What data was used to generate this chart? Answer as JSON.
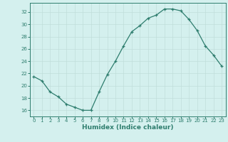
{
  "x": [
    0,
    1,
    2,
    3,
    4,
    5,
    6,
    7,
    8,
    9,
    10,
    11,
    12,
    13,
    14,
    15,
    16,
    17,
    18,
    19,
    20,
    21,
    22,
    23
  ],
  "y": [
    21.5,
    20.8,
    19.0,
    18.2,
    17.0,
    16.5,
    16.0,
    16.0,
    19.0,
    21.8,
    24.0,
    26.5,
    28.8,
    29.8,
    31.0,
    31.5,
    32.5,
    32.5,
    32.2,
    30.8,
    29.0,
    26.5,
    25.0,
    23.2
  ],
  "xlabel": "Humidex (Indice chaleur)",
  "xlim": [
    -0.5,
    23.5
  ],
  "ylim": [
    15.0,
    33.5
  ],
  "yticks": [
    16,
    18,
    20,
    22,
    24,
    26,
    28,
    30,
    32
  ],
  "xticks": [
    0,
    1,
    2,
    3,
    4,
    5,
    6,
    7,
    8,
    9,
    10,
    11,
    12,
    13,
    14,
    15,
    16,
    17,
    18,
    19,
    20,
    21,
    22,
    23
  ],
  "line_color": "#2e7d6e",
  "bg_color": "#d4f0ee",
  "grid_color": "#c0deda",
  "tick_color": "#2e7d6e",
  "label_color": "#2e7d6e",
  "spine_color": "#2e7d6e",
  "tick_fontsize": 5.0,
  "xlabel_fontsize": 6.5
}
